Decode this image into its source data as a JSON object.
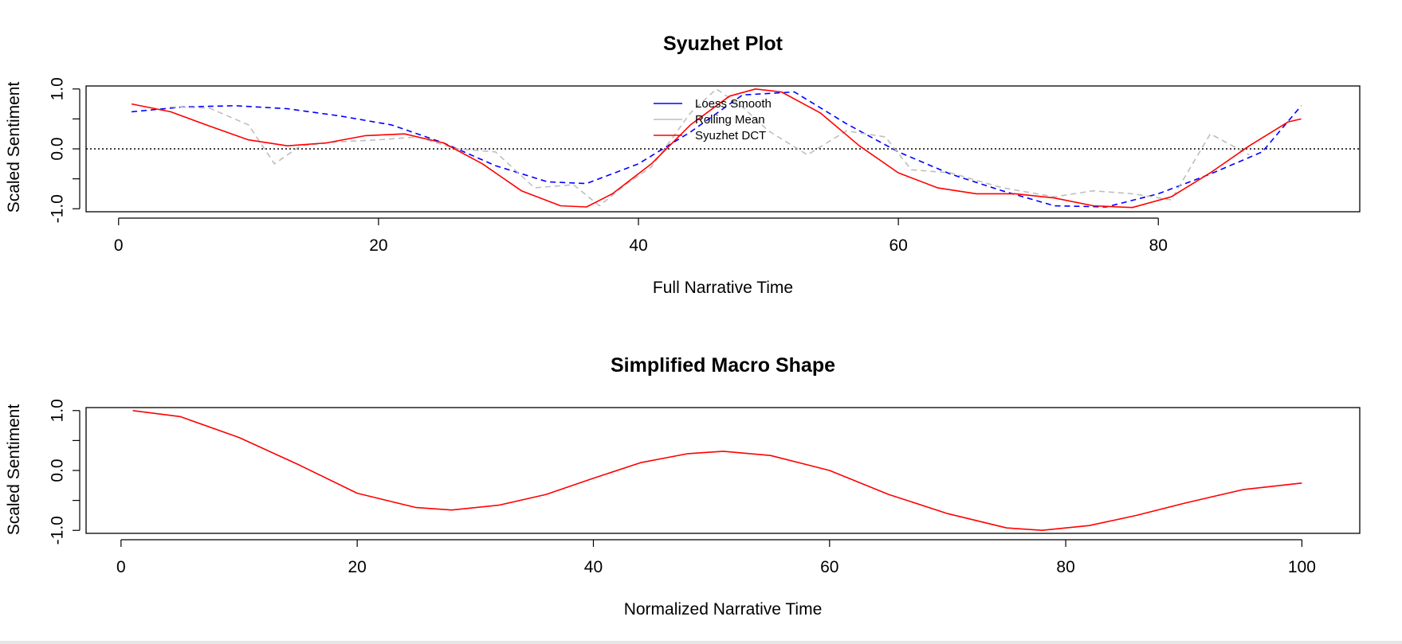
{
  "chart_data": [
    {
      "type": "line",
      "title": "Syuzhet Plot",
      "xlabel": "Full Narrative Time",
      "ylabel": "Scaled Sentiment",
      "xlim": [
        -2.5,
        95.5
      ],
      "ylim": [
        -1.05,
        1.05
      ],
      "x_ticks": [
        0,
        20,
        40,
        60,
        80
      ],
      "y_ticks": [
        1.0,
        0.5,
        0.0,
        -0.5,
        -1.0
      ],
      "y_tick_labels": [
        "1.0",
        "",
        "0.0",
        "",
        "-1.0"
      ],
      "reference_line": 0,
      "legend": {
        "position": "top-center",
        "entries": [
          "Loess Smooth",
          "Rolling Mean",
          "Syuzhet DCT"
        ]
      },
      "series": [
        {
          "name": "Loess Smooth",
          "color": "#0000ff",
          "style": "dashed",
          "x": [
            1,
            5,
            9,
            13,
            17,
            21,
            25,
            29,
            33,
            36,
            40,
            44,
            48,
            52,
            56,
            60,
            64,
            68,
            72,
            76,
            80,
            84,
            88,
            91
          ],
          "y": [
            0.62,
            0.7,
            0.72,
            0.67,
            0.55,
            0.4,
            0.1,
            -0.28,
            -0.55,
            -0.58,
            -0.25,
            0.28,
            0.9,
            0.95,
            0.42,
            -0.05,
            -0.42,
            -0.7,
            -0.95,
            -0.97,
            -0.75,
            -0.42,
            -0.05,
            0.72
          ]
        },
        {
          "name": "Rolling Mean",
          "color": "#bebebe",
          "style": "dashed",
          "x": [
            4,
            7,
            10,
            12,
            14,
            17,
            20,
            23,
            26,
            29,
            32,
            35,
            37,
            39,
            41,
            44,
            46,
            48,
            50,
            53,
            56,
            59,
            61,
            64,
            68,
            72,
            75,
            78,
            81,
            84,
            87
          ],
          "y": [
            0.7,
            0.68,
            0.4,
            -0.25,
            0.05,
            0.12,
            0.15,
            0.2,
            0.0,
            -0.05,
            -0.65,
            -0.6,
            -0.95,
            -0.6,
            -0.3,
            0.6,
            1.0,
            0.7,
            0.3,
            -0.1,
            0.3,
            0.2,
            -0.35,
            -0.4,
            -0.65,
            -0.8,
            -0.7,
            -0.75,
            -0.85,
            0.25,
            -0.1
          ]
        },
        {
          "name": "Syuzhet DCT",
          "color": "#ff0000",
          "style": "solid",
          "x": [
            1,
            4,
            7,
            10,
            13,
            16,
            19,
            22,
            25,
            28,
            31,
            34,
            36,
            38,
            41,
            44,
            47,
            49,
            51,
            54,
            57,
            60,
            63,
            66,
            69,
            72,
            75,
            78,
            81,
            84,
            87,
            90,
            91
          ],
          "y": [
            0.75,
            0.62,
            0.38,
            0.15,
            0.05,
            0.1,
            0.22,
            0.25,
            0.1,
            -0.25,
            -0.7,
            -0.95,
            -0.97,
            -0.75,
            -0.25,
            0.4,
            0.88,
            1.0,
            0.95,
            0.6,
            0.05,
            -0.4,
            -0.65,
            -0.75,
            -0.75,
            -0.82,
            -0.95,
            -0.98,
            -0.8,
            -0.4,
            0.05,
            0.45,
            0.5
          ]
        }
      ]
    },
    {
      "type": "line",
      "title": "Simplified Macro Shape",
      "xlabel": "Normalized Narrative Time",
      "ylabel": "Scaled Sentiment",
      "xlim": [
        -2.96,
        104.9
      ],
      "ylim": [
        -1.05,
        1.05
      ],
      "x_ticks": [
        0,
        20,
        40,
        60,
        80,
        100
      ],
      "y_ticks": [
        1.0,
        0.5,
        0.0,
        -0.5,
        -1.0
      ],
      "y_tick_labels": [
        "1.0",
        "",
        "0.0",
        "",
        "-1.0"
      ],
      "series": [
        {
          "color": "#ff0000",
          "style": "solid",
          "x": [
            1,
            5,
            10,
            15,
            20,
            25,
            28,
            32,
            36,
            40,
            44,
            48,
            51,
            55,
            60,
            65,
            70,
            75,
            78,
            82,
            86,
            90,
            95,
            100
          ],
          "y": [
            1.0,
            0.9,
            0.55,
            0.1,
            -0.38,
            -0.62,
            -0.66,
            -0.58,
            -0.4,
            -0.13,
            0.13,
            0.28,
            0.32,
            0.25,
            0.0,
            -0.4,
            -0.72,
            -0.96,
            -1.0,
            -0.92,
            -0.75,
            -0.55,
            -0.32,
            -0.21
          ]
        }
      ]
    }
  ]
}
